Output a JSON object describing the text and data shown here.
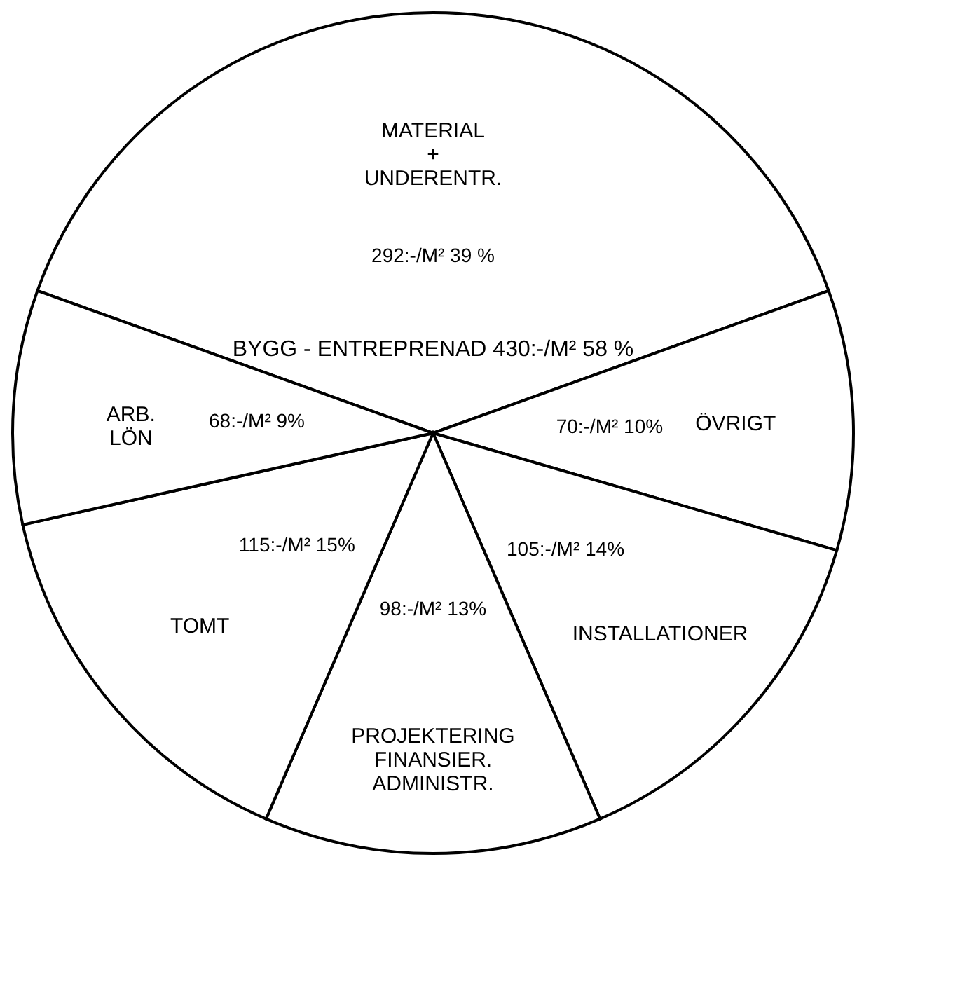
{
  "chart_data": {
    "type": "pie",
    "categories": [
      "MATERIAL + UNDERENTR.",
      "ÖVRIGT",
      "INSTALLATIONER",
      "PROJEKTERING FINANSIER. ADMINISTR.",
      "TOMT",
      "ARB. LÖN"
    ],
    "values": [
      39,
      10,
      14,
      13,
      15,
      9
    ],
    "value_labels": [
      "292:-/M² 39 %",
      "70:-/M² 10%",
      "105:-/M² 14%",
      "98:-/M² 13%",
      "115:-/M² 15%",
      "68:-/M² 9%"
    ],
    "colors": [
      "#ffffff",
      "#ffffff",
      "#ffffff",
      "#ffffff",
      "#ffffff",
      "#ffffff"
    ],
    "annotations": [
      "BYGG - ENTREPRENAD 430:-/M² 58 %"
    ],
    "legend": false
  }
}
